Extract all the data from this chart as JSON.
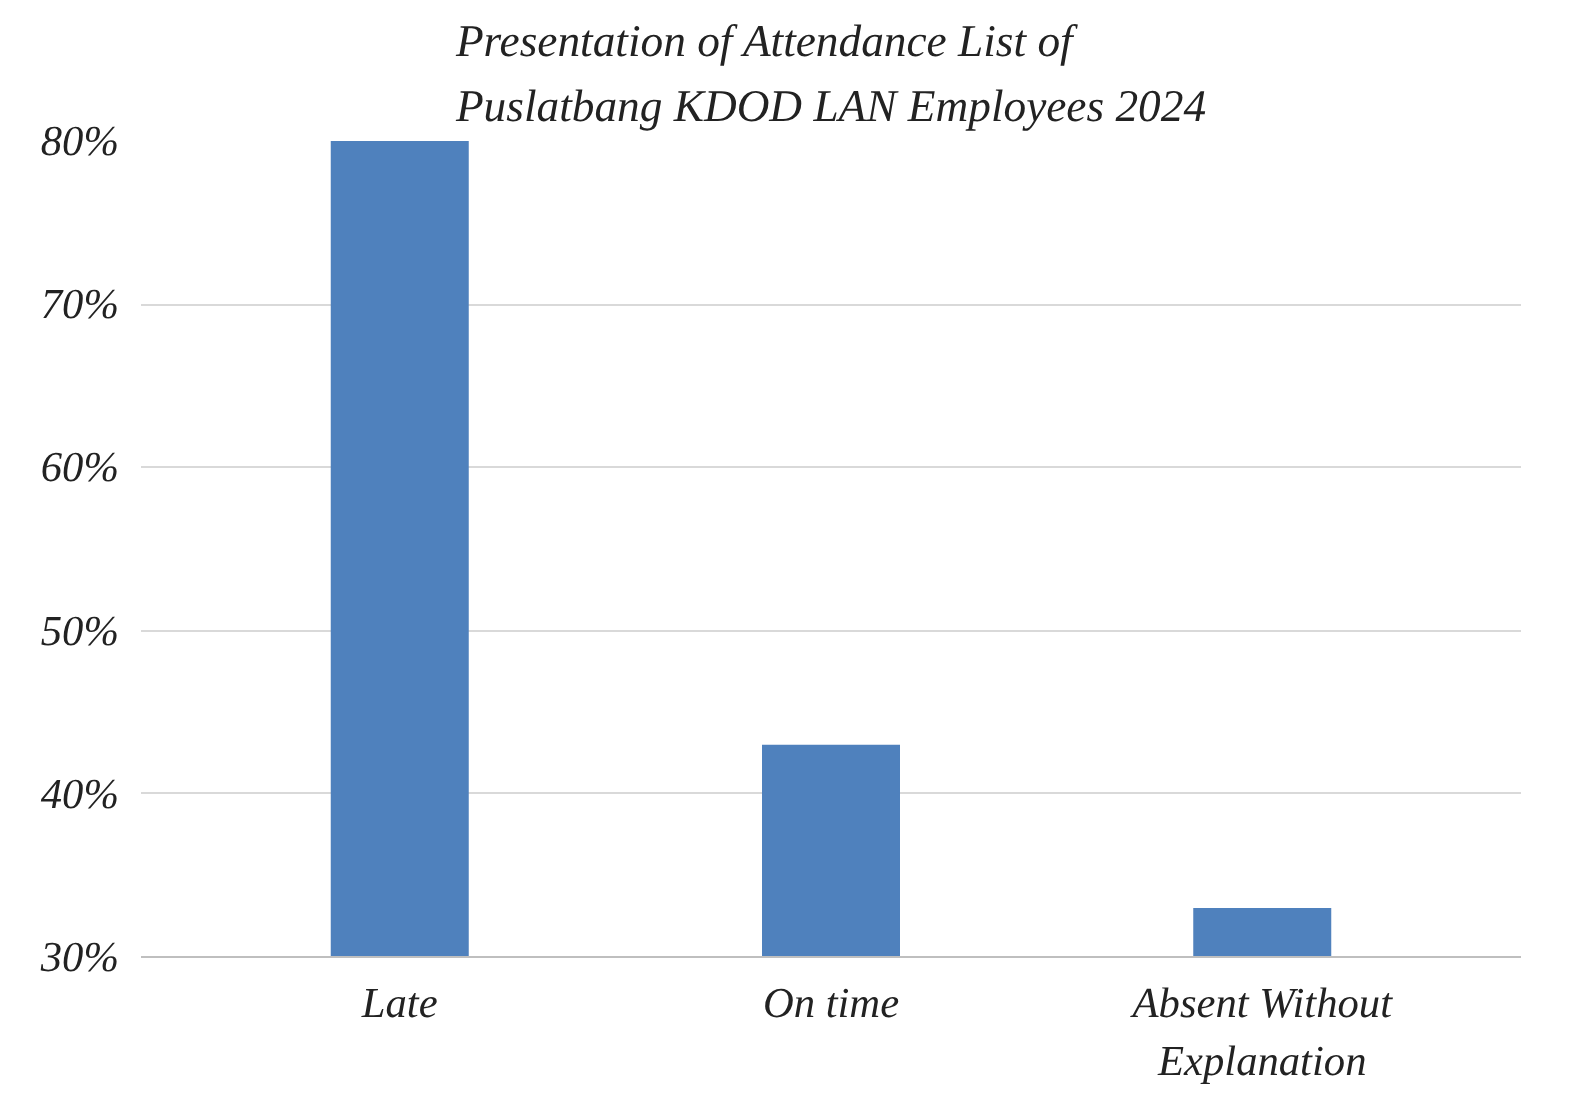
{
  "chart_data": {
    "type": "bar",
    "title": "Presentation of Attendance List of\nPuslatbang KDOD LAN Employees 2024",
    "categories": [
      "Late",
      "On time",
      "Absent Without\nExplanation"
    ],
    "values": [
      80,
      43,
      33
    ],
    "color": "#4f81bd",
    "ylim": [
      30,
      80
    ],
    "yticks": [
      {
        "value": 30,
        "label": "30%"
      },
      {
        "value": 40,
        "label": "40%"
      },
      {
        "value": 50,
        "label": "50%"
      },
      {
        "value": 60,
        "label": "60%"
      },
      {
        "value": 70,
        "label": "70%"
      },
      {
        "value": 80,
        "label": "80%"
      }
    ],
    "grid": "y"
  }
}
